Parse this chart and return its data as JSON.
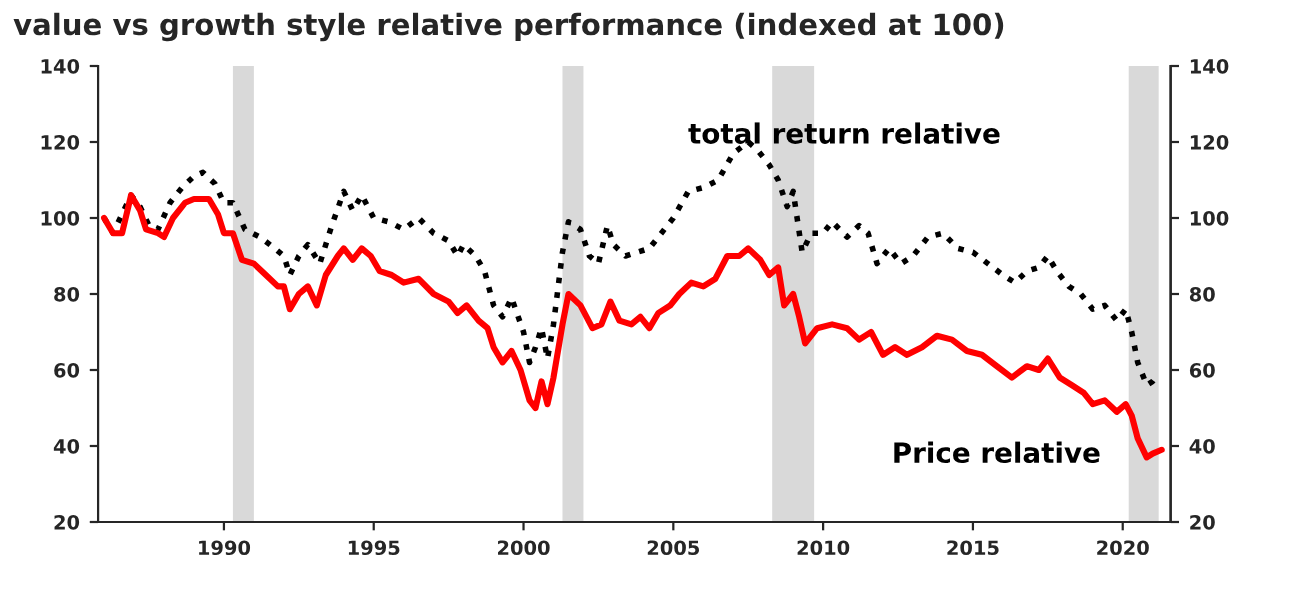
{
  "chart_data": {
    "type": "line",
    "title": "value vs growth style relative performance (indexed at 100)",
    "xlim": [
      1985.8,
      2021.6
    ],
    "xticks": [
      1990,
      1995,
      2000,
      2005,
      2010,
      2015,
      2020
    ],
    "ylim": [
      20,
      140
    ],
    "yticks": [
      20,
      40,
      60,
      80,
      100,
      120,
      140
    ],
    "y2lim": [
      20,
      140
    ],
    "y2ticks": [
      20,
      40,
      60,
      80,
      100,
      120,
      140
    ],
    "grid": false,
    "legend": false,
    "bands": [
      {
        "axis": "x",
        "from": 1990.3,
        "to": 1991.0,
        "color": "#d9d9d9"
      },
      {
        "axis": "x",
        "from": 2001.3,
        "to": 2002.0,
        "color": "#d9d9d9"
      },
      {
        "axis": "x",
        "from": 2008.3,
        "to": 2009.7,
        "color": "#d9d9d9"
      },
      {
        "axis": "x",
        "from": 2020.2,
        "to": 2021.2,
        "color": "#d9d9d9"
      }
    ],
    "series": [
      {
        "name": "total return relative",
        "color": "#000000",
        "line_style": "dotted",
        "x": [
          1986.0,
          1986.3,
          1986.6,
          1986.9,
          1987.2,
          1987.5,
          1987.8,
          1988.2,
          1988.6,
          1989.0,
          1989.3,
          1989.7,
          1990.0,
          1990.3,
          1990.7,
          1991.2,
          1991.7,
          1992.0,
          1992.2,
          1992.5,
          1992.8,
          1993.2,
          1993.6,
          1994.0,
          1994.3,
          1994.6,
          1995.0,
          1995.5,
          1996.0,
          1996.5,
          1997.0,
          1997.5,
          1997.8,
          1998.0,
          1998.4,
          1998.7,
          1999.0,
          1999.3,
          1999.6,
          2000.0,
          2000.2,
          2000.4,
          2000.6,
          2000.8,
          2001.0,
          2001.3,
          2001.5,
          2001.9,
          2002.2,
          2002.5,
          2002.8,
          2003.0,
          2003.4,
          2003.8,
          2004.2,
          2004.6,
          2005.0,
          2005.5,
          2006.0,
          2006.5,
          2007.0,
          2007.5,
          2007.8,
          2008.2,
          2008.5,
          2008.8,
          2009.0,
          2009.3,
          2009.6,
          2010.0,
          2010.3,
          2010.8,
          2011.2,
          2011.5,
          2011.8,
          2012.2,
          2012.6,
          2013.0,
          2013.5,
          2014.0,
          2014.5,
          2015.0,
          2015.5,
          2016.0,
          2016.4,
          2016.8,
          2017.2,
          2017.5,
          2017.8,
          2018.2,
          2018.6,
          2019.0,
          2019.4,
          2019.8,
          2020.1,
          2020.3,
          2020.5,
          2020.8,
          2021.0,
          2021.2
        ],
        "values": [
          100,
          96,
          null,
          106,
          103,
          98,
          97,
          104,
          108,
          111,
          112,
          109,
          104,
          104,
          97,
          95,
          92,
          90,
          85,
          90,
          93,
          88,
          98,
          107,
          102,
          106,
          100,
          99,
          97,
          100,
          96,
          94,
          90,
          93,
          90,
          86,
          77,
          74,
          79,
          70,
          62,
          66,
          71,
          63,
          72,
          91,
          99,
          97,
          90,
          88,
          98,
          93,
          90,
          91,
          92,
          96,
          100,
          107,
          108,
          110,
          117,
          120,
          118,
          114,
          110,
          103,
          107,
          91,
          96,
          96,
          99,
          95,
          98,
          96,
          88,
          92,
          88,
          90,
          95,
          96,
          92,
          91,
          88,
          85,
          83,
          86,
          87,
          90,
          86,
          82,
          80,
          76,
          77,
          73,
          76,
          70,
          62,
          56,
          57,
          59
        ]
      },
      {
        "name": "Price relative",
        "color": "#ff0000",
        "line_style": "solid",
        "x": [
          1986.0,
          1986.3,
          1986.6,
          1986.9,
          1987.2,
          1987.4,
          1987.8,
          1988.0,
          1988.3,
          1988.7,
          1989.0,
          1989.5,
          1989.8,
          1990.0,
          1990.3,
          1990.6,
          1991.0,
          1991.4,
          1991.8,
          1992.0,
          1992.2,
          1992.5,
          1992.8,
          1993.1,
          1993.4,
          1993.8,
          1994.0,
          1994.3,
          1994.6,
          1994.9,
          1995.2,
          1995.6,
          1996.0,
          1996.5,
          1997.0,
          1997.5,
          1997.8,
          1998.1,
          1998.5,
          1998.8,
          1999.0,
          1999.3,
          1999.6,
          1999.9,
          2000.2,
          2000.4,
          2000.6,
          2000.8,
          2001.0,
          2001.3,
          2001.5,
          2001.9,
          2002.3,
          2002.6,
          2002.9,
          2003.2,
          2003.6,
          2003.9,
          2004.2,
          2004.5,
          2004.9,
          2005.2,
          2005.6,
          2006.0,
          2006.4,
          2006.8,
          2007.2,
          2007.5,
          2007.9,
          2008.2,
          2008.5,
          2008.7,
          2009.0,
          2009.2,
          2009.4,
          2009.8,
          2010.3,
          2010.8,
          2011.2,
          2011.6,
          2012.0,
          2012.4,
          2012.8,
          2013.3,
          2013.8,
          2014.3,
          2014.8,
          2015.3,
          2015.8,
          2016.3,
          2016.8,
          2017.2,
          2017.5,
          2017.9,
          2018.3,
          2018.7,
          2019.0,
          2019.4,
          2019.8,
          2020.1,
          2020.3,
          2020.5,
          2020.8,
          2021.0,
          2021.3
        ],
        "values": [
          100,
          96,
          96,
          106,
          102,
          97,
          96,
          95,
          100,
          104,
          105,
          105,
          101,
          96,
          96,
          89,
          88,
          85,
          82,
          82,
          76,
          80,
          82,
          77,
          85,
          90,
          92,
          89,
          92,
          90,
          86,
          85,
          83,
          84,
          80,
          78,
          75,
          77,
          73,
          71,
          66,
          62,
          65,
          60,
          52,
          50,
          57,
          51,
          58,
          72,
          80,
          77,
          71,
          72,
          78,
          73,
          72,
          74,
          71,
          75,
          77,
          80,
          83,
          82,
          84,
          90,
          90,
          92,
          89,
          85,
          87,
          77,
          80,
          74,
          67,
          71,
          72,
          71,
          68,
          70,
          64,
          66,
          64,
          66,
          69,
          68,
          65,
          64,
          61,
          58,
          61,
          60,
          63,
          58,
          56,
          54,
          51,
          52,
          49,
          51,
          48,
          42,
          37,
          38,
          39
        ]
      }
    ]
  }
}
